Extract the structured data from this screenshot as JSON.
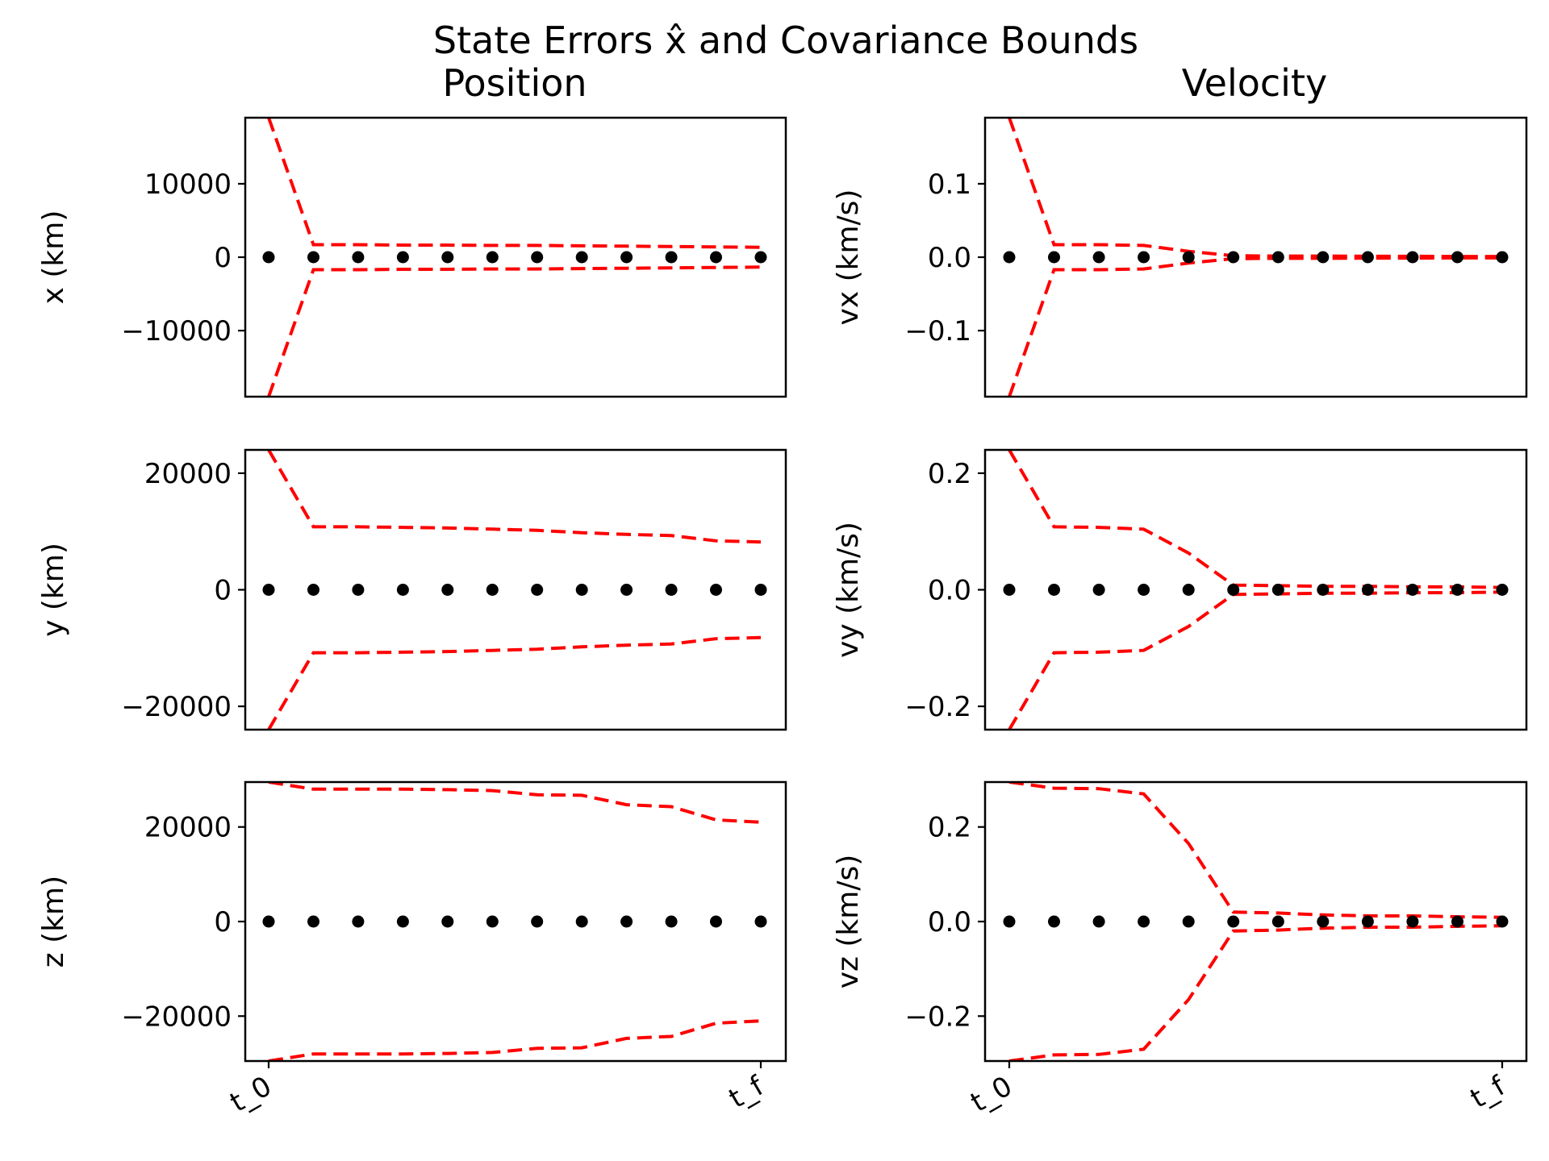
{
  "chart_data": {
    "type": "scatter",
    "title": "State Errors x̂ and Covariance Bounds",
    "column_titles": [
      "Position",
      "Velocity"
    ],
    "colors": {
      "bounds": "#ff0000",
      "errors": "#000000"
    },
    "x_tick_labels": [
      "t_0",
      "t_f"
    ],
    "n_steps": 12,
    "panels": [
      {
        "id": "x",
        "ylabel": "x (km)",
        "ylim": [
          -19000,
          19000
        ],
        "yticks": [
          10000,
          0,
          -10000
        ],
        "ytick_labels": [
          "10000",
          "0",
          "−10000"
        ],
        "errors": [
          0,
          0,
          0,
          0,
          0,
          0,
          0,
          0,
          0,
          0,
          0,
          0
        ],
        "upper_bound": [
          19000,
          1700,
          1700,
          1650,
          1650,
          1600,
          1600,
          1550,
          1500,
          1450,
          1400,
          1350
        ],
        "lower_bound": [
          -19000,
          -1700,
          -1700,
          -1650,
          -1650,
          -1600,
          -1600,
          -1550,
          -1500,
          -1450,
          -1400,
          -1350
        ]
      },
      {
        "id": "vx",
        "ylabel": "vx (km/s)",
        "ylim": [
          -0.19,
          0.19
        ],
        "yticks": [
          0.1,
          0.0,
          -0.1
        ],
        "ytick_labels": [
          "0.1",
          "0.0",
          "−0.1"
        ],
        "errors": [
          0,
          0,
          0,
          0,
          0,
          0,
          0,
          0,
          0,
          0,
          0,
          0
        ],
        "upper_bound": [
          0.19,
          0.017,
          0.017,
          0.016,
          0.008,
          0.002,
          0.0015,
          0.0015,
          0.0012,
          0.0012,
          0.001,
          0.001
        ],
        "lower_bound": [
          -0.19,
          -0.017,
          -0.017,
          -0.016,
          -0.008,
          -0.002,
          -0.0015,
          -0.0015,
          -0.0012,
          -0.0012,
          -0.001,
          -0.001
        ]
      },
      {
        "id": "y",
        "ylabel": "y (km)",
        "ylim": [
          -24000,
          24000
        ],
        "yticks": [
          20000,
          0,
          -20000
        ],
        "ytick_labels": [
          "20000",
          "0",
          "−20000"
        ],
        "errors": [
          0,
          0,
          0,
          0,
          0,
          0,
          0,
          0,
          0,
          0,
          0,
          0
        ],
        "upper_bound": [
          24000,
          10800,
          10800,
          10700,
          10600,
          10400,
          10200,
          9800,
          9500,
          9300,
          8400,
          8200
        ],
        "lower_bound": [
          -24000,
          -10800,
          -10800,
          -10700,
          -10600,
          -10400,
          -10200,
          -9800,
          -9500,
          -9300,
          -8400,
          -8200
        ]
      },
      {
        "id": "vy",
        "ylabel": "vy (km/s)",
        "ylim": [
          -0.24,
          0.24
        ],
        "yticks": [
          0.2,
          0.0,
          -0.2
        ],
        "ytick_labels": [
          "0.2",
          "0.0",
          "−0.2"
        ],
        "errors": [
          0,
          0,
          0,
          0,
          0,
          0,
          0,
          0,
          0,
          0,
          0,
          0
        ],
        "upper_bound": [
          0.24,
          0.108,
          0.107,
          0.104,
          0.063,
          0.008,
          0.007,
          0.006,
          0.006,
          0.005,
          0.005,
          0.004
        ],
        "lower_bound": [
          -0.24,
          -0.108,
          -0.107,
          -0.104,
          -0.063,
          -0.008,
          -0.007,
          -0.006,
          -0.006,
          -0.005,
          -0.005,
          -0.004
        ]
      },
      {
        "id": "z",
        "ylabel": "z (km)",
        "ylim": [
          -29500,
          29500
        ],
        "yticks": [
          20000,
          0,
          -20000
        ],
        "ytick_labels": [
          "20000",
          "0",
          "−20000"
        ],
        "errors": [
          0,
          0,
          0,
          0,
          0,
          0,
          0,
          0,
          0,
          0,
          0,
          0
        ],
        "upper_bound": [
          29500,
          28000,
          28000,
          28000,
          27900,
          27700,
          26800,
          26700,
          24700,
          24300,
          21500,
          21000
        ],
        "lower_bound": [
          -29500,
          -28000,
          -28000,
          -28000,
          -27900,
          -27700,
          -26800,
          -26700,
          -24700,
          -24300,
          -21500,
          -21000
        ]
      },
      {
        "id": "vz",
        "ylabel": "vz (km/s)",
        "ylim": [
          -0.295,
          0.295
        ],
        "yticks": [
          0.2,
          0.0,
          -0.2
        ],
        "ytick_labels": [
          "0.2",
          "0.0",
          "−0.2"
        ],
        "errors": [
          0,
          0,
          0,
          0,
          0,
          0,
          0,
          0,
          0,
          0,
          0,
          0
        ],
        "upper_bound": [
          0.295,
          0.282,
          0.281,
          0.27,
          0.165,
          0.02,
          0.018,
          0.014,
          0.012,
          0.012,
          0.01,
          0.009
        ],
        "lower_bound": [
          -0.295,
          -0.282,
          -0.281,
          -0.27,
          -0.165,
          -0.02,
          -0.018,
          -0.014,
          -0.012,
          -0.012,
          -0.01,
          -0.009
        ]
      }
    ]
  }
}
